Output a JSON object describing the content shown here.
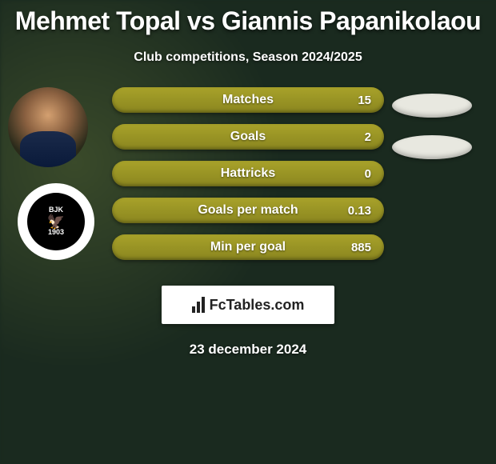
{
  "title": "Mehmet Topal vs Giannis Papanikolaou",
  "subtitle": "Club competitions, Season 2024/2025",
  "date": "23 december 2024",
  "fctables_label": "FcTables.com",
  "club_badge": {
    "top": "BJK",
    "year": "1903"
  },
  "colors": {
    "bar_fill": "#a8a22a",
    "bar_fill_dark": "#8a861f",
    "blob_fill": "#e8e8e0",
    "background": "#1a2a1f"
  },
  "stats": [
    {
      "label": "Matches",
      "value": "15"
    },
    {
      "label": "Goals",
      "value": "2"
    },
    {
      "label": "Hattricks",
      "value": "0"
    },
    {
      "label": "Goals per match",
      "value": "0.13"
    },
    {
      "label": "Min per goal",
      "value": "885"
    }
  ],
  "blob_count": 2
}
